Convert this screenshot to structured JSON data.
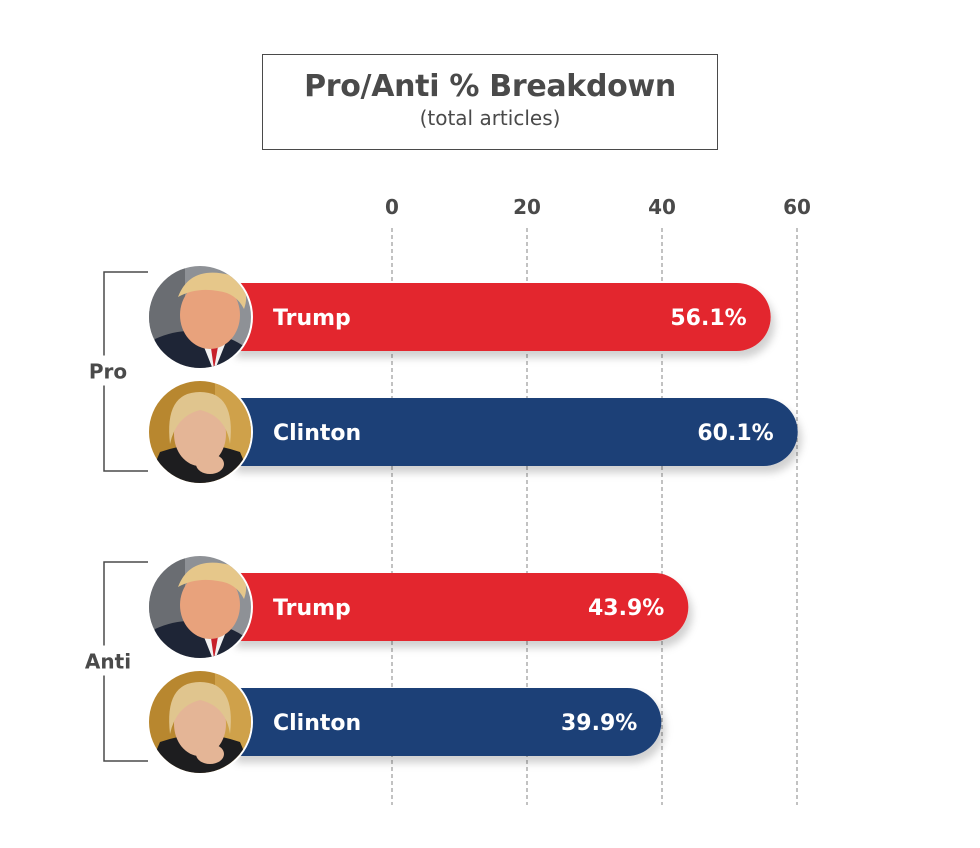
{
  "chart_data": {
    "type": "bar",
    "orientation": "horizontal",
    "title": "Pro/Anti % Breakdown",
    "subtitle": "(total articles)",
    "xlim": [
      0,
      60
    ],
    "xticks": [
      0,
      20,
      40,
      60
    ],
    "grid": true,
    "groups": [
      {
        "label": "Pro",
        "bars": [
          {
            "name": "Trump",
            "value": 56.1,
            "value_label": "56.1%",
            "color": "#e3272d",
            "avatar": "trump-photo"
          },
          {
            "name": "Clinton",
            "value": 60.1,
            "value_label": "60.1%",
            "color": "#1c3f77",
            "avatar": "clinton-photo"
          }
        ]
      },
      {
        "label": "Anti",
        "bars": [
          {
            "name": "Trump",
            "value": 43.9,
            "value_label": "43.9%",
            "color": "#e3272d",
            "avatar": "trump-photo"
          },
          {
            "name": "Clinton",
            "value": 39.9,
            "value_label": "39.9%",
            "color": "#1c3f77",
            "avatar": "clinton-photo"
          }
        ]
      }
    ]
  },
  "colors": {
    "text": "#4a4a4a",
    "grid": "#9a9a9a",
    "trump": "#e3272d",
    "clinton": "#1c3f77"
  }
}
